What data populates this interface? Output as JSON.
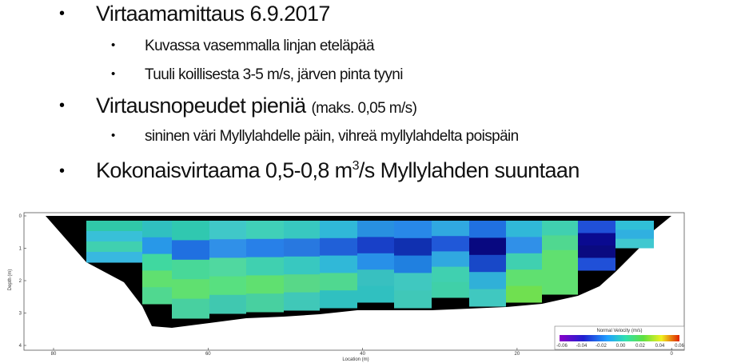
{
  "bullets": [
    {
      "text": "Virtaamamittaus 6.9.2017",
      "sub": [
        "Kuvassa vasemmalla linjan eteläpää",
        "Tuuli koillisesta 3-5 m/s, järven pinta tyyni"
      ]
    },
    {
      "text": "Virtausnopeudet pieniä",
      "note": "(maks. 0,05 m/s)",
      "sub": [
        "sininen väri Myllylahdelle päin, vihreä myllylahdelta poispäin"
      ]
    },
    {
      "text": "Kokonaisvirtaama 0,5-0,8 m",
      "sup": "3",
      "text_after": "/s Myllylahden suuntaan"
    }
  ],
  "figure": {
    "y_axis_label": "Depth (m)",
    "yticks": [
      "0",
      "1",
      "2",
      "3",
      "4"
    ],
    "x_axis_label": "Location (m)",
    "xticks": [
      "80",
      "60",
      "40",
      "20",
      "0"
    ],
    "colorbar_title": "Normal Velocity (m/s)",
    "colorbar_ticks": [
      "-0.06",
      "-0.04",
      "-0.02",
      "0.00",
      "0.02",
      "0.04",
      "0.06"
    ]
  }
}
